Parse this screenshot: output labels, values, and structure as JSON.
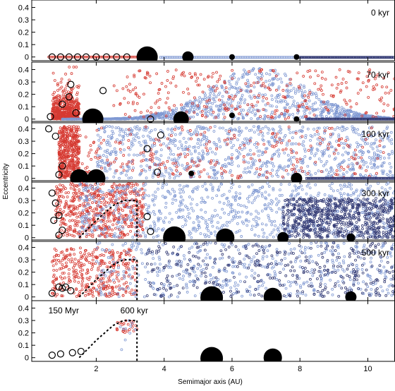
{
  "colors": {
    "red": "#d63a32",
    "light_blue": "#7f98d2",
    "dark_navy": "#333a74",
    "black": "#000000"
  },
  "chart_data": {
    "type": "scatter",
    "xlabel": "Semimajor axis (AU)",
    "ylabel": "Eccentricity",
    "xlim": [
      0.1,
      10.8
    ],
    "ylim": [
      -0.03,
      0.46
    ],
    "x_ticks": [
      2,
      4,
      6,
      8,
      10
    ],
    "y_ticks": [
      0,
      0.1,
      0.2,
      0.3,
      0.4
    ],
    "y_tick_labels": [
      "0",
      "0.1",
      "0.2",
      "0.3",
      "0.4"
    ],
    "x_tick_labels": [
      "2",
      "4",
      "6",
      "8",
      "10"
    ],
    "series": [
      {
        "color_key": "red",
        "marker": "small-open-circle",
        "region_au": [
          0.6,
          3.3
        ]
      },
      {
        "color_key": "light_blue",
        "marker": "small-square",
        "region_au": [
          0.6,
          8.0
        ]
      },
      {
        "color_key": "dark_navy",
        "marker": "small-square",
        "region_au": [
          8.0,
          10.8
        ]
      },
      {
        "color_key": "black",
        "marker": "filled-circle-size-scaled-by-mass"
      },
      {
        "color_key": "black",
        "marker": "open-circle"
      }
    ],
    "panels": [
      {
        "label": "0 kyr",
        "big_bodies": [
          {
            "a": 3.5,
            "e": 0.0,
            "size": 15
          },
          {
            "a": 4.7,
            "e": 0.0,
            "size": 8
          },
          {
            "a": 6.0,
            "e": 0.0,
            "size": 4
          },
          {
            "a": 7.9,
            "e": 0.0,
            "size": 4
          }
        ],
        "embryos": [
          {
            "a": 0.7,
            "e": 0.0
          },
          {
            "a": 0.95,
            "e": 0.0
          },
          {
            "a": 1.2,
            "e": 0.0
          },
          {
            "a": 1.45,
            "e": 0.0
          },
          {
            "a": 1.7,
            "e": 0.0
          },
          {
            "a": 2.0,
            "e": 0.0
          },
          {
            "a": 2.3,
            "e": 0.0
          },
          {
            "a": 2.6,
            "e": 0.0
          },
          {
            "a": 2.9,
            "e": 0.0
          }
        ]
      },
      {
        "label": "70 kyr",
        "big_bodies": [
          {
            "a": 1.9,
            "e": 0.0,
            "size": 15
          },
          {
            "a": 4.5,
            "e": 0.0,
            "size": 11
          },
          {
            "a": 6.0,
            "e": 0.03,
            "size": 4
          },
          {
            "a": 7.9,
            "e": 0.0,
            "size": 4
          }
        ],
        "embryos": [
          {
            "a": 0.65,
            "e": 0.02
          },
          {
            "a": 1.0,
            "e": 0.12
          },
          {
            "a": 1.2,
            "e": 0.18
          },
          {
            "a": 1.25,
            "e": 0.28
          },
          {
            "a": 1.4,
            "e": 0.05
          },
          {
            "a": 2.2,
            "e": 0.23
          },
          {
            "a": 3.6,
            "e": 0.0
          }
        ]
      },
      {
        "label": "100 kyr",
        "big_bodies": [
          {
            "a": 1.5,
            "e": 0.0,
            "size": 13
          },
          {
            "a": 2.0,
            "e": 0.0,
            "size": 13
          },
          {
            "a": 4.8,
            "e": 0.04,
            "size": 4
          },
          {
            "a": 7.9,
            "e": 0.0,
            "size": 8
          }
        ],
        "embryos": [
          {
            "a": 0.6,
            "e": 0.4
          },
          {
            "a": 0.8,
            "e": 0.34
          },
          {
            "a": 0.9,
            "e": 0.03
          },
          {
            "a": 1.0,
            "e": 0.1
          },
          {
            "a": 3.5,
            "e": 0.24
          },
          {
            "a": 3.9,
            "e": 0.35
          },
          {
            "a": 3.8,
            "e": 0.05
          }
        ]
      },
      {
        "label": "300 kyr",
        "big_bodies": [
          {
            "a": 4.3,
            "e": 0.0,
            "size": 16
          },
          {
            "a": 5.8,
            "e": 0.0,
            "size": 13
          },
          {
            "a": 7.5,
            "e": 0.0,
            "size": 8
          },
          {
            "a": 9.5,
            "e": 0.0,
            "size": 6
          }
        ],
        "embryos": [
          {
            "a": 0.7,
            "e": 0.36
          },
          {
            "a": 0.8,
            "e": 0.28
          },
          {
            "a": 0.75,
            "e": 0.14
          },
          {
            "a": 0.9,
            "e": 0.18
          },
          {
            "a": 0.9,
            "e": 0.02
          },
          {
            "a": 1.0,
            "e": 0.06
          },
          {
            "a": 3.5,
            "e": 0.17
          },
          {
            "a": 3.6,
            "e": 0.05
          }
        ],
        "resonance_curve_label": "",
        "curve": [
          [
            1.5,
            0.0
          ],
          [
            2.0,
            0.14
          ],
          [
            2.5,
            0.26
          ],
          [
            2.8,
            0.3
          ],
          [
            3.2,
            0.3
          ]
        ],
        "vertical_line_x": 3.2
      },
      {
        "label": "500 kyr",
        "big_bodies": [
          {
            "a": 5.4,
            "e": -0.005,
            "size": 16
          },
          {
            "a": 7.2,
            "e": 0.0,
            "size": 13
          },
          {
            "a": 9.5,
            "e": 0.0,
            "size": 8
          }
        ],
        "embryos": [
          {
            "a": 0.7,
            "e": 0.03
          },
          {
            "a": 0.9,
            "e": 0.08
          },
          {
            "a": 1.0,
            "e": 0.07
          },
          {
            "a": 1.1,
            "e": 0.08
          },
          {
            "a": 1.25,
            "e": 0.05
          }
        ],
        "curve": [
          [
            1.5,
            0.0
          ],
          [
            2.0,
            0.14
          ],
          [
            2.5,
            0.26
          ],
          [
            2.8,
            0.3
          ],
          [
            3.2,
            0.3
          ]
        ],
        "vertical_line_x": 3.2
      },
      {
        "label": "600 kyr",
        "label2": "150 Myr",
        "big_bodies": [
          {
            "a": 5.4,
            "e": -0.005,
            "size": 16
          },
          {
            "a": 7.2,
            "e": 0.0,
            "size": 13
          }
        ],
        "embryos": [
          {
            "a": 0.7,
            "e": 0.02
          },
          {
            "a": 0.95,
            "e": 0.03
          },
          {
            "a": 1.3,
            "e": 0.04
          },
          {
            "a": 1.55,
            "e": 0.05
          }
        ],
        "curve": [
          [
            1.5,
            0.0
          ],
          [
            2.0,
            0.14
          ],
          [
            2.5,
            0.26
          ],
          [
            2.8,
            0.3
          ],
          [
            3.2,
            0.3
          ]
        ],
        "vertical_line_x": 3.2
      }
    ]
  }
}
